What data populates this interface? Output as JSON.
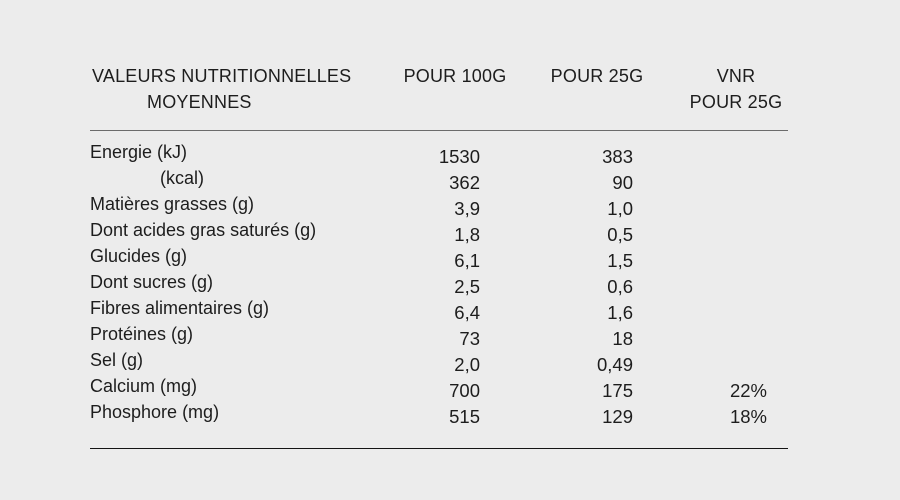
{
  "table": {
    "header": {
      "label_line1": "VALEURS NUTRITIONNELLES",
      "label_line2": "MOYENNES",
      "per100g": "POUR 100G",
      "per25g": "POUR 25G",
      "vnr_line1": "VNR",
      "vnr_line2": "POUR 25G"
    },
    "rows": [
      {
        "label": "Energie (kJ)",
        "per100g": "1530",
        "per25g": "383",
        "vnr": ""
      },
      {
        "label": "(kcal)",
        "per100g": "362",
        "per25g": "90",
        "vnr": ""
      },
      {
        "label": "Matières grasses (g)",
        "per100g": "3,9",
        "per25g": "1,0",
        "vnr": ""
      },
      {
        "label": "Dont acides gras saturés (g)",
        "per100g": "1,8",
        "per25g": "0,5",
        "vnr": ""
      },
      {
        "label": "Glucides (g)",
        "per100g": "6,1",
        "per25g": "1,5",
        "vnr": ""
      },
      {
        "label": "Dont sucres (g)",
        "per100g": "2,5",
        "per25g": "0,6",
        "vnr": ""
      },
      {
        "label": "Fibres alimentaires (g)",
        "per100g": "6,4",
        "per25g": "1,6",
        "vnr": ""
      },
      {
        "label": "Protéines (g)",
        "per100g": "73",
        "per25g": "18",
        "vnr": ""
      },
      {
        "label": "Sel (g)",
        "per100g": "2,0",
        "per25g": "0,49",
        "vnr": ""
      },
      {
        "label": "Calcium (mg)",
        "per100g": "700",
        "per25g": "175",
        "vnr": "22%"
      },
      {
        "label": "Phosphore (mg)",
        "per100g": "515",
        "per25g": "129",
        "vnr": "18%"
      }
    ]
  },
  "colors": {
    "background": "#ececec",
    "text": "#1d1d1d",
    "rule_top": "#6b6b6b",
    "rule_bottom": "#141414"
  }
}
